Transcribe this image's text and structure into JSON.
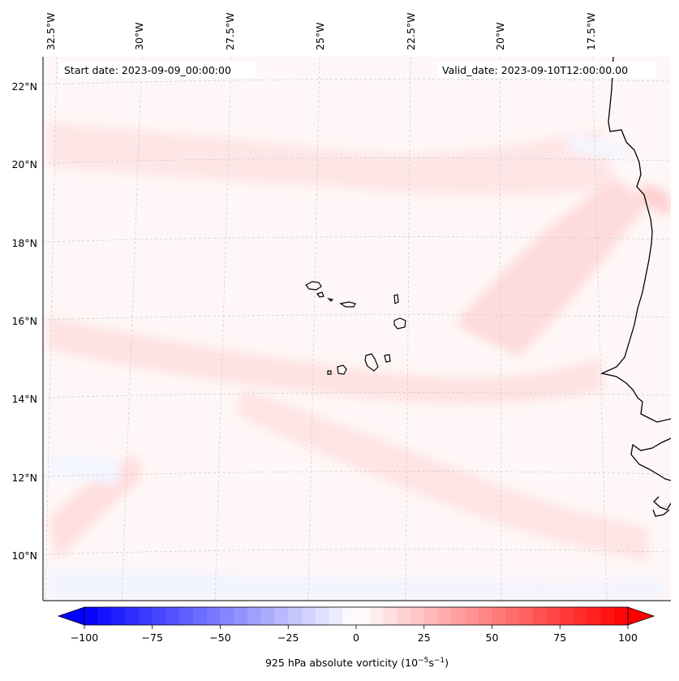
{
  "map": {
    "start_date_text": "Start date: 2023-09-09_00:00:00",
    "valid_date_text": "Valid_date: 2023-09-10T12:00:00.00",
    "longitude_labels": [
      "32.5°W",
      "30°W",
      "27.5°W",
      "25°W",
      "22.5°W",
      "20°W",
      "17.5°W"
    ],
    "latitude_labels": [
      "22°N",
      "20°N",
      "18°N",
      "16°N",
      "14°N",
      "12°N",
      "10°N"
    ],
    "field": "925 hPa absolute vorticity",
    "islands": [
      "Santo Antão",
      "São Vicente",
      "Santa Luzia",
      "São Nicolau",
      "Sal",
      "Boa Vista",
      "Maio",
      "Santiago",
      "Fogo",
      "Brava"
    ],
    "colors": {
      "background": "#ffffff",
      "weak_positive": "#fff3f3",
      "light_positive": "#ffe2e2",
      "medium_positive": "#ffd2d2",
      "weak_negative": "#f3f5ff",
      "coastline": "#000000",
      "gridline": "#cccccc"
    }
  },
  "colorbar": {
    "tick_labels": [
      "−100",
      "−75",
      "−50",
      "−25",
      "0",
      "25",
      "50",
      "75",
      "100"
    ],
    "min": -100,
    "max": 100,
    "levels": 40,
    "colormap": "bwr",
    "title_main": "925 hPa absolute vorticity (10",
    "title_exp1": "−5",
    "title_mid": "s",
    "title_exp2": "−1",
    "title_end": ")"
  }
}
